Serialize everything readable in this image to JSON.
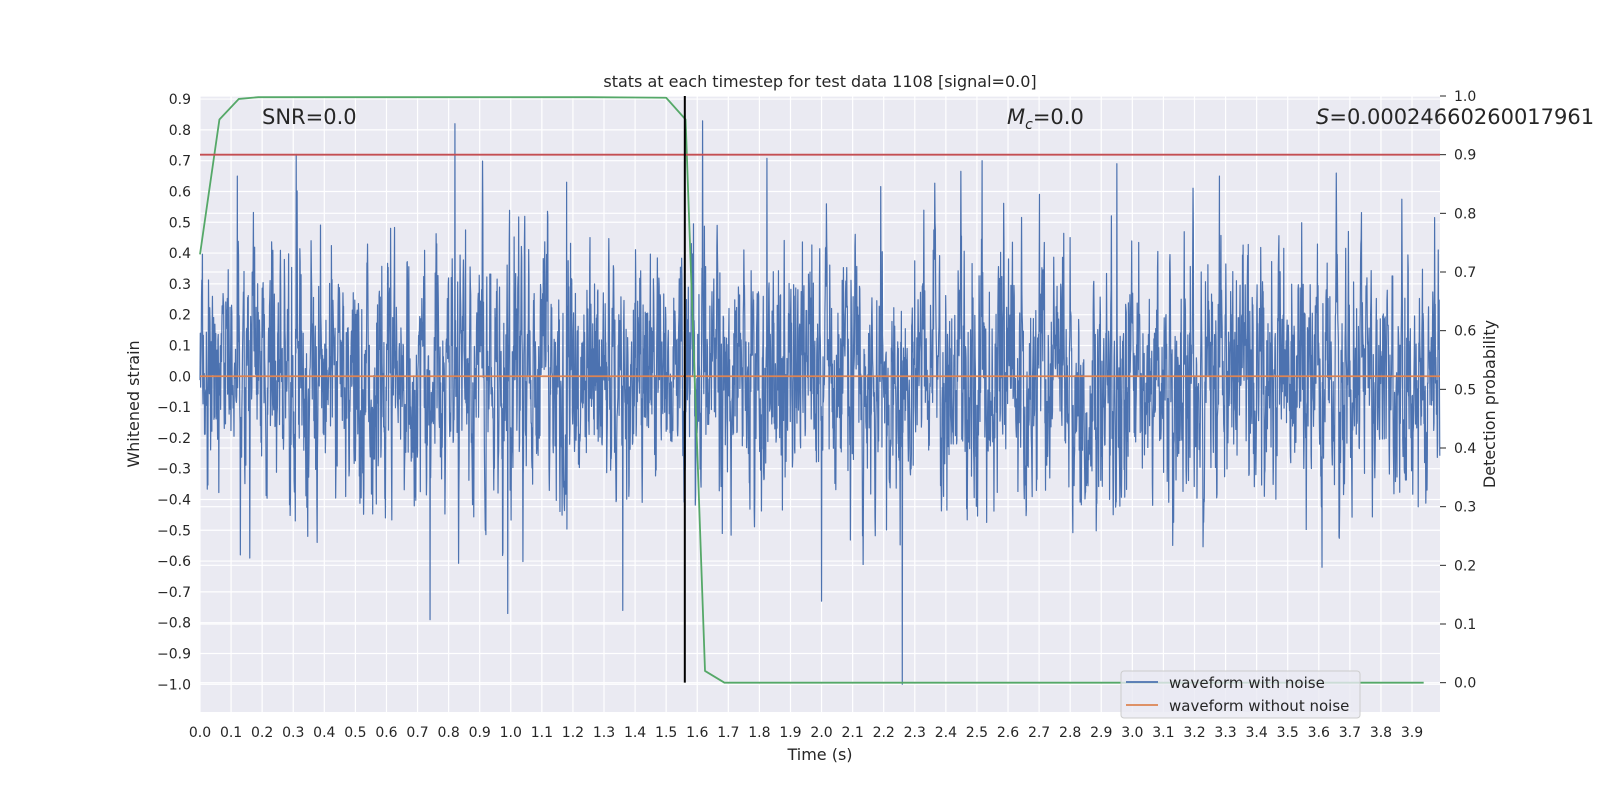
{
  "chart_data": {
    "type": "line",
    "title": "stats at each timestep for test data 1108 [signal=0.0]",
    "xlabel": "Time (s)",
    "ylabel": "Whitened strain",
    "y2label": "Detection probability",
    "xlim": [
      0.0,
      3.99
    ],
    "ylim": [
      -1.09,
      0.91
    ],
    "y2lim": [
      -0.05,
      1.0
    ],
    "x_ticks": [
      0.0,
      0.1,
      0.2,
      0.3,
      0.4,
      0.5,
      0.6,
      0.7,
      0.8,
      0.9,
      1.0,
      1.1,
      1.2,
      1.3,
      1.4,
      1.5,
      1.6,
      1.7,
      1.8,
      1.9,
      2.0,
      2.1,
      2.2,
      2.3,
      2.4,
      2.5,
      2.6,
      2.7,
      2.8,
      2.9,
      3.0,
      3.1,
      3.2,
      3.3,
      3.4,
      3.5,
      3.6,
      3.7,
      3.8,
      3.9
    ],
    "x_tick_labels": [
      "0.0",
      "0.1",
      "0.2",
      "0.3",
      "0.4",
      "0.5",
      "0.6",
      "0.7",
      "0.8",
      "0.9",
      "1.0",
      "1.1",
      "1.2",
      "1.3",
      "1.4",
      "1.5",
      "1.6",
      "1.7",
      "1.8",
      "1.9",
      "2.0",
      "2.1",
      "2.2",
      "2.3",
      "2.4",
      "2.5",
      "2.6",
      "2.7",
      "2.8",
      "2.9",
      "3.0",
      "3.1",
      "3.2",
      "3.3",
      "3.4",
      "3.5",
      "3.6",
      "3.7",
      "3.8",
      "3.9"
    ],
    "y_ticks": [
      0.9,
      0.8,
      0.7,
      0.6,
      0.5,
      0.4,
      0.3,
      0.2,
      0.1,
      0.0,
      -0.1,
      -0.2,
      -0.3,
      -0.4,
      -0.5,
      -0.6,
      -0.7,
      -0.8,
      -0.9,
      -1.0
    ],
    "y_tick_labels": [
      "0.9",
      "0.8",
      "0.7",
      "0.6",
      "0.5",
      "0.4",
      "0.3",
      "0.2",
      "0.1",
      "0.0",
      "−0.1",
      "−0.2",
      "−0.3",
      "−0.4",
      "−0.5",
      "−0.6",
      "−0.7",
      "−0.8",
      "−0.9",
      "−1.0"
    ],
    "y2_ticks": [
      0.0,
      0.1,
      0.2,
      0.3,
      0.4,
      0.5,
      0.6,
      0.7,
      0.8,
      0.9,
      1.0
    ],
    "y2_tick_labels": [
      "0.0",
      "0.1",
      "0.2",
      "0.3",
      "0.4",
      "0.5",
      "0.6",
      "0.7",
      "0.8",
      "0.9",
      "1.0"
    ],
    "annotations": {
      "snr": "SNR=0.0",
      "mc_symbol": "M",
      "mc_subscript": "c",
      "mc_value": "=0.0",
      "s_symbol": "S",
      "s_value": "=0.00024660260017961"
    },
    "legend": {
      "placement": "lower-right",
      "entries": [
        "waveform with noise",
        "waveform without noise"
      ]
    },
    "series": [
      {
        "name": "waveform with noise",
        "axis": "left",
        "color": "#4c72b0",
        "generator": "noise",
        "seed": 1108,
        "sample_rate": 1024,
        "amplitude_std": 0.2,
        "peaks": [
          {
            "x": 0.12,
            "y": 0.65
          },
          {
            "x": 0.13,
            "y": -0.58
          },
          {
            "x": 0.16,
            "y": -0.59
          },
          {
            "x": 0.31,
            "y": 0.72
          },
          {
            "x": 0.74,
            "y": -0.79
          },
          {
            "x": 0.82,
            "y": 0.82
          },
          {
            "x": 0.99,
            "y": -0.77
          },
          {
            "x": 1.18,
            "y": 0.63
          },
          {
            "x": 1.36,
            "y": -0.76
          },
          {
            "x": 1.56,
            "y": 0.66
          },
          {
            "x": 2.0,
            "y": -0.73
          },
          {
            "x": 2.26,
            "y": -1.0
          },
          {
            "x": 2.95,
            "y": 0.69
          },
          {
            "x": 3.28,
            "y": 0.65
          },
          {
            "x": 3.61,
            "y": -0.62
          }
        ]
      },
      {
        "name": "waveform without noise",
        "axis": "left",
        "color": "#dd8452",
        "x": [
          0.0,
          3.99
        ],
        "y": [
          0.0,
          0.0
        ]
      },
      {
        "name": "detection probability",
        "axis": "right",
        "color": "#55a868",
        "x": [
          0.0,
          0.0625,
          0.125,
          0.1875,
          0.5,
          1.0,
          1.25,
          1.5,
          1.5625,
          1.625,
          1.6875,
          2.0,
          3.0,
          3.9375
        ],
        "y": [
          0.73,
          0.96,
          0.995,
          0.998,
          0.998,
          0.998,
          0.998,
          0.997,
          0.96,
          0.02,
          0.0,
          0.0,
          0.0,
          0.0
        ]
      }
    ],
    "reference_lines": [
      {
        "name": "threshold",
        "orientation": "horizontal",
        "axis": "right",
        "value": 0.9,
        "color": "#c44e52"
      },
      {
        "name": "marker",
        "orientation": "vertical",
        "value": 1.56,
        "color": "#000000"
      }
    ]
  }
}
